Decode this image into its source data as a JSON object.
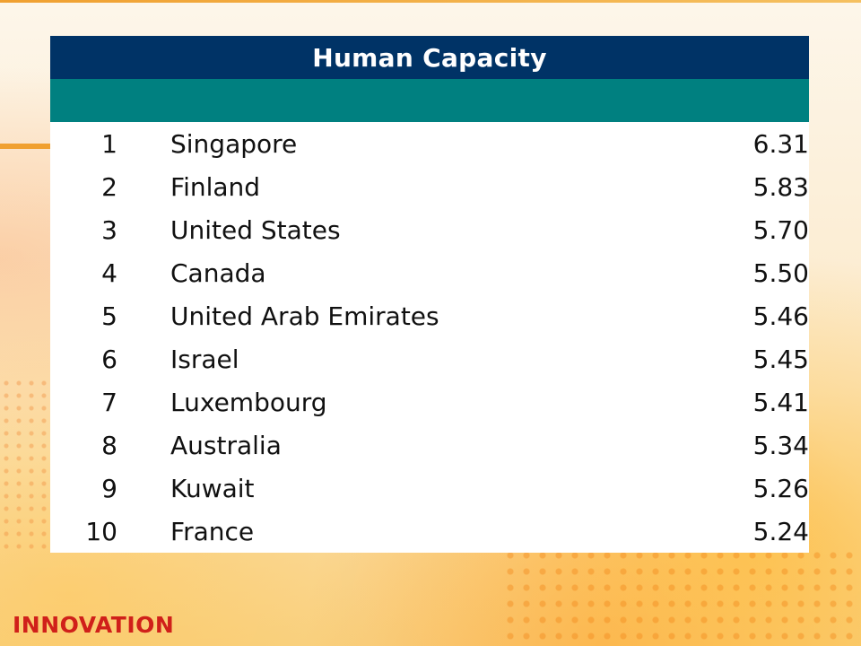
{
  "table": {
    "title": "Human Capacity",
    "rows": [
      {
        "rank": "1",
        "country": "Singapore",
        "score": "6.31"
      },
      {
        "rank": "2",
        "country": "Finland",
        "score": "5.83"
      },
      {
        "rank": "3",
        "country": "United States",
        "score": "5.70"
      },
      {
        "rank": "4",
        "country": "Canada",
        "score": "5.50"
      },
      {
        "rank": "5",
        "country": "United Arab Emirates",
        "score": "5.46"
      },
      {
        "rank": "6",
        "country": "Israel",
        "score": "5.45"
      },
      {
        "rank": "7",
        "country": "Luxembourg",
        "score": "5.41"
      },
      {
        "rank": "8",
        "country": "Australia",
        "score": "5.34"
      },
      {
        "rank": "9",
        "country": "Kuwait",
        "score": "5.26"
      },
      {
        "rank": "10",
        "country": "France",
        "score": "5.24"
      }
    ]
  },
  "footer": {
    "logo_text": "INNOVATION"
  },
  "colors": {
    "header": "#003366",
    "subheader": "#008080",
    "logo": "#d0201a",
    "accent": "#f0a030"
  }
}
